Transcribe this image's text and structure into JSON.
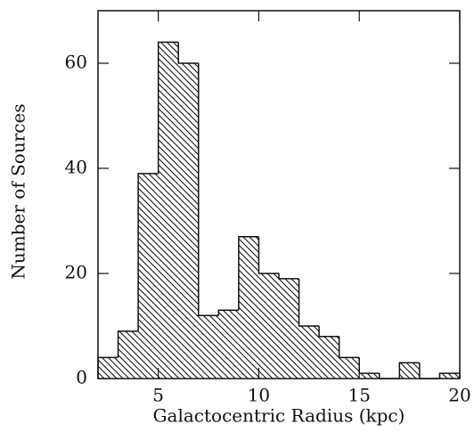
{
  "chart_data": {
    "type": "histogram",
    "xlabel": "Galactocentric Radius (kpc)",
    "ylabel": "Number of Sources",
    "bins": [
      2,
      3,
      4,
      5,
      6,
      7,
      8,
      9,
      10,
      11,
      12,
      13,
      14,
      15,
      16,
      17,
      18,
      19,
      20
    ],
    "values": [
      4,
      9,
      39,
      64,
      60,
      12,
      13,
      27,
      20,
      19,
      10,
      8,
      4,
      1,
      0,
      3,
      0,
      1
    ],
    "color": "#111111",
    "xlim": [
      2,
      20
    ],
    "ylim": [
      0,
      70
    ],
    "xticks": [
      5,
      10,
      15,
      20
    ],
    "yticks": [
      0,
      20,
      40,
      60
    ],
    "grid": false
  }
}
